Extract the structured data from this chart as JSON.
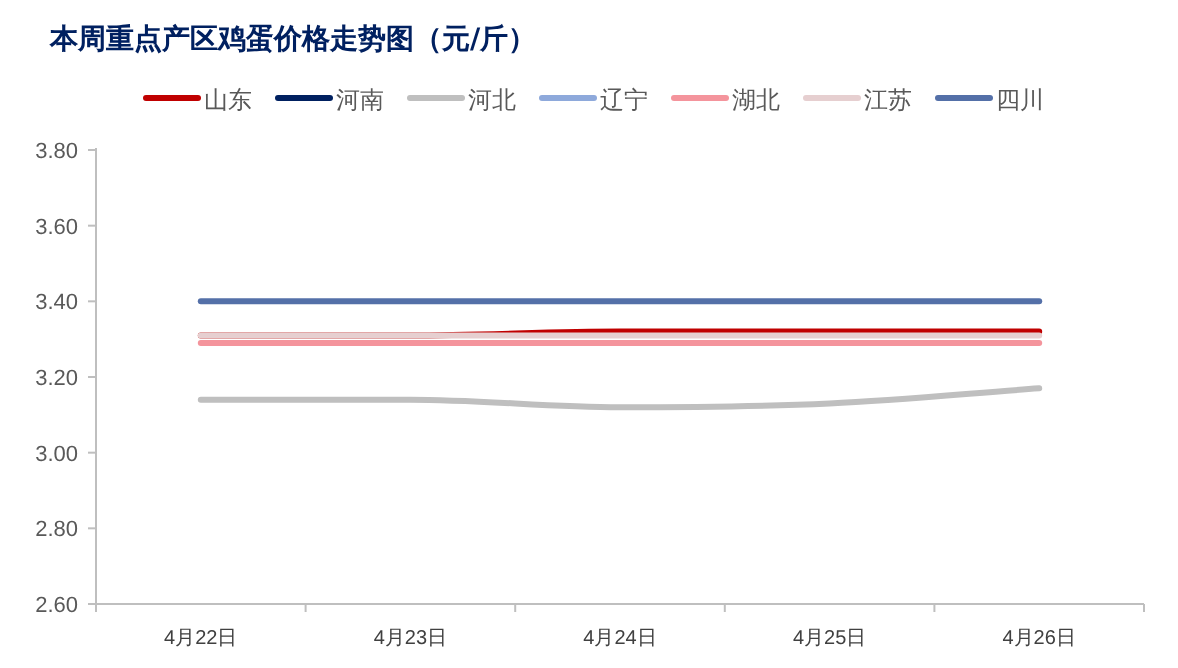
{
  "chart_data": {
    "type": "line",
    "title": "本周重点产区鸡蛋价格走势图（元/斤）",
    "categories": [
      "4月22日",
      "4月23日",
      "4月24日",
      "4月25日",
      "4月26日"
    ],
    "ylim": [
      2.6,
      3.8
    ],
    "yticks": [
      {
        "value": 2.6,
        "label": "2.60"
      },
      {
        "value": 2.8,
        "label": "2.80"
      },
      {
        "value": 3.0,
        "label": "3.00"
      },
      {
        "value": 3.2,
        "label": "3.20"
      },
      {
        "value": 3.4,
        "label": "3.40"
      },
      {
        "value": 3.6,
        "label": "3.60"
      },
      {
        "value": 3.8,
        "label": "3.80"
      }
    ],
    "legend": "top",
    "grid": false,
    "marker": "none",
    "line_style": "solid",
    "series": [
      {
        "name": "山东",
        "color": "#c00000",
        "values": [
          3.31,
          3.31,
          3.32,
          3.32,
          3.32
        ]
      },
      {
        "name": "河南",
        "color": "#002060",
        "values": [
          null,
          null,
          null,
          null,
          null
        ]
      },
      {
        "name": "河北",
        "color": "#bfbfbf",
        "values": [
          3.14,
          3.14,
          3.12,
          3.13,
          3.17
        ]
      },
      {
        "name": "辽宁",
        "color": "#8ea9db",
        "values": [
          null,
          null,
          null,
          null,
          null
        ]
      },
      {
        "name": "湖北",
        "color": "#f4949c",
        "values": [
          3.29,
          3.29,
          3.29,
          3.29,
          3.29
        ]
      },
      {
        "name": "江苏",
        "color": "#e6cfd0",
        "values": [
          3.31,
          3.31,
          3.31,
          3.31,
          3.31
        ]
      },
      {
        "name": "四川",
        "color": "#5470a8",
        "values": [
          3.4,
          3.4,
          3.4,
          3.4,
          3.4
        ]
      }
    ]
  }
}
